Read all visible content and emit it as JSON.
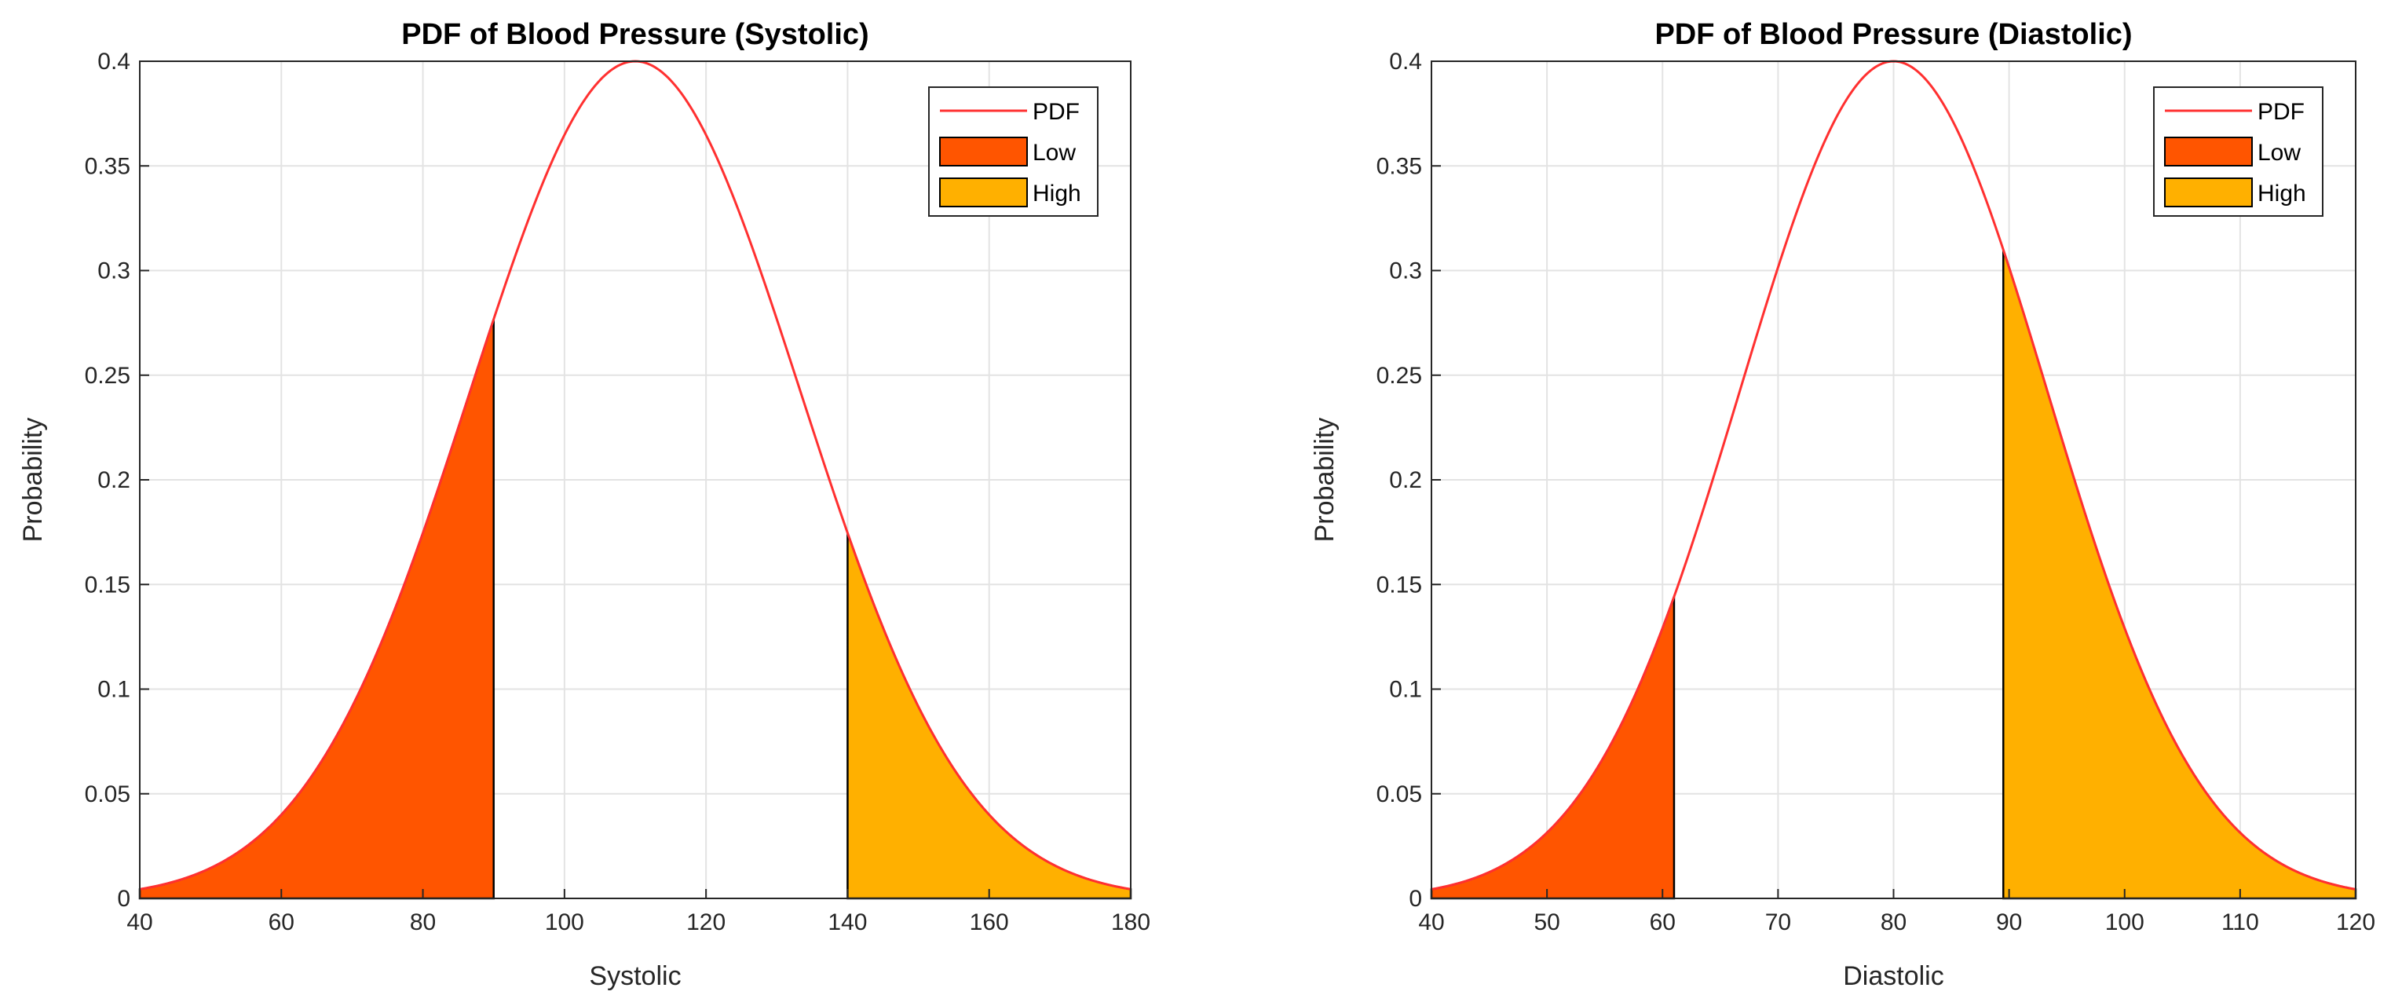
{
  "chart_data": [
    {
      "type": "area",
      "title": "PDF of Blood Pressure (Systolic)",
      "xlabel": "Systolic",
      "ylabel": "Probability",
      "xlim": [
        40,
        180
      ],
      "ylim": [
        0,
        0.4
      ],
      "xticks": [
        40,
        60,
        80,
        100,
        120,
        140,
        160,
        180
      ],
      "yticks": [
        0,
        0.05,
        0.1,
        0.15,
        0.2,
        0.25,
        0.3,
        0.35,
        0.4
      ],
      "grid": true,
      "legend_position": "top-right",
      "legend": [
        "PDF",
        "Low",
        "High"
      ],
      "curve": {
        "mean": 110,
        "sd": 23.3,
        "peak": 0.4
      },
      "series": [
        {
          "name": "PDF",
          "kind": "line",
          "x_range": [
            40,
            180
          ],
          "color": "#ff3030"
        },
        {
          "name": "Low",
          "kind": "fill",
          "x_range": [
            40,
            90
          ],
          "color": "#ff5500"
        },
        {
          "name": "High",
          "kind": "fill",
          "x_range": [
            140,
            180
          ],
          "color": "#ffb000"
        }
      ],
      "key_points": [
        {
          "x": 40,
          "y": 0.0045
        },
        {
          "x": 90,
          "y": 0.277
        },
        {
          "x": 110,
          "y": 0.4
        },
        {
          "x": 140,
          "y": 0.18
        },
        {
          "x": 180,
          "y": 0.0045
        }
      ]
    },
    {
      "type": "area",
      "title": "PDF of Blood Pressure (Diastolic)",
      "xlabel": "Diastolic",
      "ylabel": "Probability",
      "xlim": [
        40,
        120
      ],
      "ylim": [
        0,
        0.4
      ],
      "xticks": [
        40,
        50,
        60,
        70,
        80,
        90,
        100,
        110,
        120
      ],
      "yticks": [
        0,
        0.05,
        0.1,
        0.15,
        0.2,
        0.25,
        0.3,
        0.35,
        0.4
      ],
      "grid": true,
      "legend_position": "top-right",
      "legend": [
        "PDF",
        "Low",
        "High"
      ],
      "curve": {
        "mean": 80,
        "sd": 13.3,
        "peak": 0.4
      },
      "series": [
        {
          "name": "PDF",
          "kind": "line",
          "x_range": [
            40,
            120
          ],
          "color": "#ff3030"
        },
        {
          "name": "Low",
          "kind": "fill",
          "x_range": [
            40,
            61
          ],
          "color": "#ff5500"
        },
        {
          "name": "High",
          "kind": "fill",
          "x_range": [
            89.5,
            120
          ],
          "color": "#ffb000"
        }
      ],
      "key_points": [
        {
          "x": 40,
          "y": 0.0044
        },
        {
          "x": 61,
          "y": 0.138
        },
        {
          "x": 80,
          "y": 0.4
        },
        {
          "x": 89.5,
          "y": 0.31
        },
        {
          "x": 120,
          "y": 0.0044
        }
      ]
    }
  ]
}
